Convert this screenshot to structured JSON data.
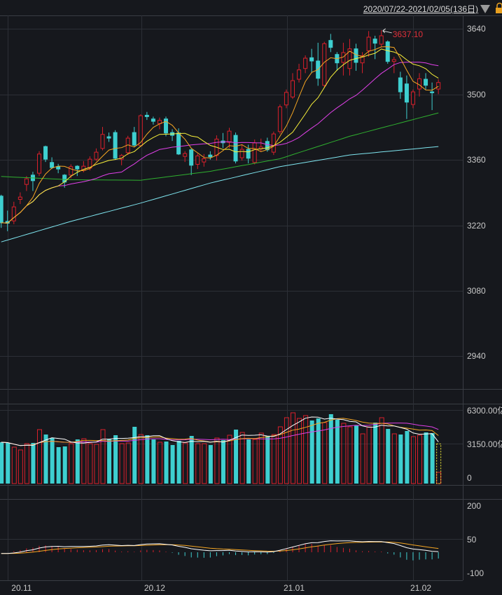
{
  "header": {
    "range_label": "2020/07/22-2021/02/05(136日)",
    "dropdown_icon": "triangle-down-icon",
    "lock_icon": "lock-icon"
  },
  "colors": {
    "background": "#16181d",
    "grid": "#2c2f36",
    "up": "#d9202b",
    "down": "#3ecfd0",
    "ma5": "#f5a623",
    "ma10": "#f8f03a",
    "ma20": "#e040e8",
    "ma60": "#2fb02f",
    "ma120": "#7fe6f0",
    "vol_ma5": "#ffffff",
    "vol_ma10": "#f5a623",
    "vol_ma20": "#e040e8",
    "dif": "#ffffff",
    "dea": "#f5a623"
  },
  "chart_data": [
    {
      "type": "candlestick",
      "panel": "price",
      "yticks": [
        "3640",
        "3500",
        "3360",
        "3220",
        "3080",
        "2940"
      ],
      "ylim": [
        2900,
        3660
      ],
      "max_label": "3637.10",
      "max_index": 60,
      "ohlc": [
        [
          3282,
          3285,
          3214,
          3225
        ],
        [
          3228,
          3251,
          3207,
          3224
        ],
        [
          3229,
          3270,
          3222,
          3259
        ],
        [
          3275,
          3290,
          3265,
          3280
        ],
        [
          3307,
          3325,
          3293,
          3319
        ],
        [
          3327,
          3334,
          3293,
          3315
        ],
        [
          3331,
          3378,
          3325,
          3372
        ],
        [
          3388,
          3390,
          3355,
          3361
        ],
        [
          3354,
          3365,
          3340,
          3343
        ],
        [
          3345,
          3351,
          3331,
          3340
        ],
        [
          3327,
          3329,
          3300,
          3312
        ],
        [
          3327,
          3350,
          3320,
          3345
        ],
        [
          3346,
          3348,
          3325,
          3340
        ],
        [
          3337,
          3357,
          3333,
          3346
        ],
        [
          3342,
          3367,
          3337,
          3361
        ],
        [
          3361,
          3384,
          3357,
          3376
        ],
        [
          3384,
          3430,
          3380,
          3414
        ],
        [
          3409,
          3418,
          3398,
          3406
        ],
        [
          3418,
          3423,
          3360,
          3363
        ],
        [
          3361,
          3372,
          3348,
          3369
        ],
        [
          3375,
          3411,
          3370,
          3406
        ],
        [
          3418,
          3430,
          3388,
          3391
        ],
        [
          3390,
          3457,
          3387,
          3454
        ],
        [
          3455,
          3462,
          3445,
          3452
        ],
        [
          3447,
          3452,
          3435,
          3442
        ],
        [
          3437,
          3450,
          3425,
          3444
        ],
        [
          3447,
          3452,
          3410,
          3417
        ],
        [
          3418,
          3425,
          3400,
          3412
        ],
        [
          3417,
          3427,
          3370,
          3372
        ],
        [
          3367,
          3378,
          3355,
          3373
        ],
        [
          3381,
          3384,
          3327,
          3348
        ],
        [
          3350,
          3373,
          3340,
          3368
        ],
        [
          3355,
          3372,
          3345,
          3362
        ],
        [
          3370,
          3378,
          3360,
          3366
        ],
        [
          3369,
          3412,
          3358,
          3404
        ],
        [
          3400,
          3417,
          3385,
          3396
        ],
        [
          3397,
          3428,
          3385,
          3421
        ],
        [
          3412,
          3418,
          3352,
          3357
        ],
        [
          3364,
          3393,
          3358,
          3382
        ],
        [
          3382,
          3392,
          3352,
          3363
        ],
        [
          3354,
          3403,
          3350,
          3396
        ],
        [
          3383,
          3405,
          3378,
          3387
        ],
        [
          3399,
          3407,
          3377,
          3381
        ],
        [
          3376,
          3420,
          3370,
          3415
        ],
        [
          3420,
          3478,
          3415,
          3473
        ],
        [
          3477,
          3510,
          3470,
          3504
        ],
        [
          3494,
          3545,
          3490,
          3529
        ],
        [
          3532,
          3565,
          3525,
          3552
        ],
        [
          3555,
          3583,
          3545,
          3577
        ],
        [
          3578,
          3597,
          3545,
          3571
        ],
        [
          3571,
          3610,
          3518,
          3534
        ],
        [
          3519,
          3612,
          3515,
          3608
        ],
        [
          3615,
          3629,
          3590,
          3600
        ],
        [
          3585,
          3590,
          3550,
          3567
        ],
        [
          3568,
          3610,
          3540,
          3589
        ],
        [
          3555,
          3618,
          3540,
          3597
        ],
        [
          3597,
          3608,
          3550,
          3568
        ],
        [
          3567,
          3590,
          3545,
          3582
        ],
        [
          3593,
          3635,
          3580,
          3622
        ],
        [
          3618,
          3625,
          3575,
          3609
        ],
        [
          3607,
          3637.1,
          3600,
          3625
        ],
        [
          3612,
          3615,
          3565,
          3570
        ],
        [
          3570,
          3580,
          3545,
          3574
        ],
        [
          3535,
          3548,
          3490,
          3505
        ],
        [
          3522,
          3540,
          3447,
          3483
        ],
        [
          3478,
          3510,
          3470,
          3505
        ],
        [
          3511,
          3545,
          3495,
          3533
        ],
        [
          3532,
          3545,
          3510,
          3519
        ],
        [
          3505,
          3525,
          3466,
          3503
        ],
        [
          3511,
          3532,
          3500,
          3525
        ]
      ],
      "ma60_points": {
        "index": [
          0,
          11,
          22,
          33,
          44,
          55,
          69
        ],
        "values": [
          3324,
          3317,
          3316,
          3335,
          3362,
          3410,
          3460
        ]
      },
      "ma120_points": {
        "index": [
          0,
          11,
          22,
          33,
          44,
          55,
          69
        ],
        "values": [
          3184,
          3228,
          3267,
          3310,
          3345,
          3370,
          3388
        ]
      }
    },
    {
      "type": "bar",
      "panel": "volume",
      "yticks": [
        "6300.00亿",
        "3150.00亿",
        "0"
      ],
      "ylim": [
        0,
        6300
      ],
      "projected_last": 3400,
      "values": [
        3540,
        3480,
        3120,
        2880,
        3420,
        3480,
        4620,
        4200,
        3900,
        3120,
        3180,
        3420,
        3780,
        3840,
        3420,
        3360,
        4620,
        3780,
        4140,
        3420,
        3480,
        4860,
        4200,
        4140,
        3780,
        3540,
        3600,
        3300,
        3660,
        3480,
        4080,
        3420,
        3420,
        3300,
        3900,
        3720,
        4140,
        4620,
        4380,
        3780,
        3780,
        4320,
        4080,
        4200,
        4860,
        5640,
        6060,
        5580,
        5820,
        5400,
        5580,
        5220,
        5940,
        5460,
        5160,
        4860,
        4980,
        4260,
        4860,
        5220,
        5640,
        4680,
        4260,
        4200,
        4500,
        4020,
        4140,
        4380,
        4320,
        960
      ]
    },
    {
      "type": "line",
      "panel": "macd",
      "yticks": [
        "200",
        "50",
        "-100"
      ],
      "ylim": [
        -100,
        200
      ]
    }
  ],
  "xaxis": {
    "labels": [
      {
        "text": "20.11",
        "index": 3
      },
      {
        "text": "20.12",
        "index": 24
      },
      {
        "text": "21.01",
        "index": 46
      },
      {
        "text": "21.02",
        "index": 66
      }
    ]
  }
}
